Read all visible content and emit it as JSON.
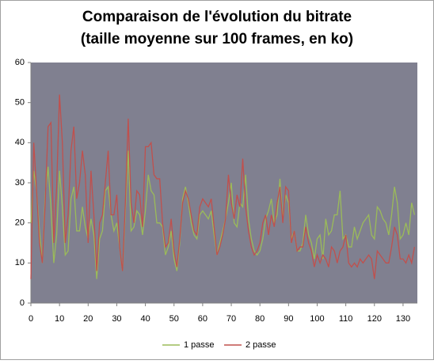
{
  "chart_data": {
    "type": "line",
    "title": [
      "Comparaison de l'évolution du bitrate",
      "(taille moyenne sur 100 frames, en ko)"
    ],
    "x": [
      0,
      1,
      2,
      3,
      4,
      5,
      6,
      7,
      8,
      9,
      10,
      11,
      12,
      13,
      14,
      15,
      16,
      17,
      18,
      19,
      20,
      21,
      22,
      23,
      24,
      25,
      26,
      27,
      28,
      29,
      30,
      31,
      32,
      33,
      34,
      35,
      36,
      37,
      38,
      39,
      40,
      41,
      42,
      43,
      44,
      45,
      46,
      47,
      48,
      49,
      50,
      51,
      52,
      53,
      54,
      55,
      56,
      57,
      58,
      59,
      60,
      61,
      62,
      63,
      64,
      65,
      66,
      67,
      68,
      69,
      70,
      71,
      72,
      73,
      74,
      75,
      76,
      77,
      78,
      79,
      80,
      81,
      82,
      83,
      84,
      85,
      86,
      87,
      88,
      89,
      90,
      91,
      92,
      93,
      94,
      95,
      96,
      97,
      98,
      99,
      100,
      101,
      102,
      103,
      104,
      105,
      106,
      107,
      108,
      109,
      110,
      111,
      112,
      113,
      114,
      115,
      116,
      117,
      118,
      119,
      120,
      121,
      122,
      123,
      124,
      125,
      126,
      127,
      128,
      129,
      130,
      131,
      132,
      133,
      134
    ],
    "series": [
      {
        "name": "1 passe",
        "color": "#9bbb59",
        "values": [
          20,
          33,
          28,
          18,
          10,
          27,
          34,
          24,
          10,
          17,
          33,
          24,
          12,
          13,
          26,
          29,
          18,
          18,
          24,
          19,
          16,
          21,
          17,
          6,
          16,
          18,
          28,
          29,
          22,
          18,
          20,
          14,
          8,
          23,
          38,
          18,
          19,
          23,
          22,
          17,
          23,
          32,
          28,
          27,
          20,
          20,
          19,
          12,
          14,
          18,
          11,
          8,
          15,
          26,
          29,
          25,
          20,
          17,
          16,
          22,
          23,
          22,
          21,
          23,
          17,
          12,
          15,
          18,
          21,
          25,
          30,
          20,
          19,
          25,
          24,
          32,
          21,
          16,
          13,
          12,
          13,
          16,
          21,
          23,
          26,
          20,
          22,
          31,
          21,
          27,
          25,
          16,
          18,
          13,
          13,
          15,
          22,
          17,
          15,
          11,
          16,
          17,
          11,
          21,
          17,
          18,
          22,
          22,
          28,
          16,
          17,
          14,
          14,
          19,
          16,
          18,
          20,
          21,
          22,
          17,
          16,
          24,
          23,
          21,
          20,
          17,
          22,
          29,
          25,
          16,
          17,
          20,
          17,
          25,
          22
        ]
      },
      {
        "name": "2 passe",
        "color": "#c0504d",
        "values": [
          6,
          40,
          28,
          15,
          10,
          25,
          44,
          45,
          15,
          29,
          52,
          40,
          15,
          22,
          38,
          44,
          26,
          30,
          38,
          32,
          15,
          33,
          22,
          8,
          20,
          22,
          30,
          38,
          22,
          22,
          27,
          14,
          8,
          25,
          46,
          25,
          20,
          28,
          27,
          19,
          39,
          39,
          40,
          32,
          31,
          31,
          20,
          14,
          15,
          21,
          13,
          9,
          16,
          25,
          28,
          26,
          22,
          18,
          17,
          24,
          26,
          25,
          24,
          26,
          19,
          12,
          14,
          17,
          21,
          32,
          25,
          21,
          27,
          24,
          36,
          24,
          18,
          14,
          12,
          13,
          15,
          20,
          22,
          17,
          22,
          19,
          25,
          29,
          20,
          29,
          28,
          15,
          18,
          13,
          14,
          14,
          19,
          15,
          13,
          9,
          12,
          10,
          12,
          11,
          9,
          14,
          13,
          10,
          13,
          14,
          17,
          10,
          9,
          10,
          9,
          11,
          10,
          11,
          12,
          11,
          6,
          13,
          12,
          11,
          10,
          10,
          14,
          19,
          17,
          11,
          11,
          10,
          12,
          10,
          14
        ]
      }
    ],
    "xlim": [
      0,
      135
    ],
    "xticks": [
      0,
      10,
      20,
      30,
      40,
      50,
      60,
      70,
      80,
      90,
      100,
      110,
      120,
      130
    ],
    "ylim": [
      0,
      60
    ],
    "yticks": [
      0,
      10,
      20,
      30,
      40,
      50,
      60
    ],
    "legend": "bottom"
  }
}
